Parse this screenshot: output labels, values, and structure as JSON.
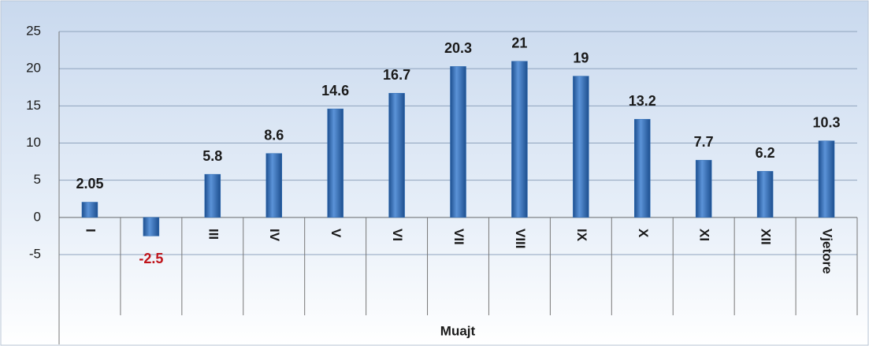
{
  "chart_data": {
    "type": "bar",
    "categories": [
      "I",
      "II",
      "III",
      "IV",
      "V",
      "VI",
      "VII",
      "VIII",
      "IX",
      "X",
      "XI",
      "XII",
      "Vjetore"
    ],
    "values": [
      2.05,
      -2.5,
      5.8,
      8.6,
      14.6,
      16.7,
      20.3,
      21,
      19,
      13.2,
      7.7,
      6.2,
      10.3
    ],
    "color": "#2f6db5",
    "negative_label_color": "#c0141b",
    "x_label": "Muajt",
    "ylim": [
      -5,
      25
    ],
    "yticks": [
      -5,
      0,
      5,
      10,
      15,
      20,
      25
    ],
    "grid": true
  }
}
